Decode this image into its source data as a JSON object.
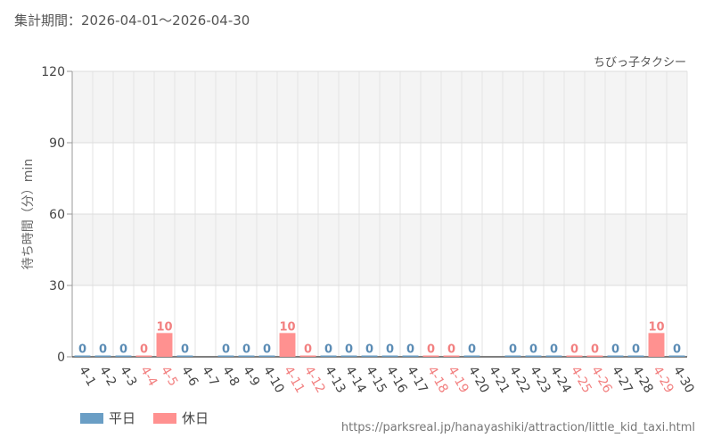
{
  "header": {
    "period_label": "集計期間：2026-04-01～2026-04-30"
  },
  "colors": {
    "weekday": "#6a9ec5",
    "holiday": "#ff9190",
    "weekday_text": "#5b8cb5",
    "holiday_text": "#f28080"
  },
  "legend": {
    "weekday_label": "平日",
    "holiday_label": "休日"
  },
  "source_url": "https://parksreal.jp/hanayashiki/attraction/little_kid_taxi.html",
  "chart_data": {
    "type": "bar",
    "title": "ちびっ子タクシー",
    "ylabel": "待ち時間（分）min",
    "xlabel": "",
    "ylim": [
      0,
      120
    ],
    "yticks": [
      0,
      30,
      60,
      90,
      120
    ],
    "grid": true,
    "legend_position": "bottom-left",
    "categories": [
      "4-1",
      "4-2",
      "4-3",
      "4-4",
      "4-5",
      "4-6",
      "4-7",
      "4-8",
      "4-9",
      "4-10",
      "4-11",
      "4-12",
      "4-13",
      "4-14",
      "4-15",
      "4-16",
      "4-17",
      "4-18",
      "4-19",
      "4-20",
      "4-21",
      "4-22",
      "4-23",
      "4-24",
      "4-25",
      "4-26",
      "4-27",
      "4-28",
      "4-29",
      "4-30"
    ],
    "day_type": [
      "weekday",
      "weekday",
      "weekday",
      "holiday",
      "holiday",
      "weekday",
      "weekday",
      "weekday",
      "weekday",
      "weekday",
      "holiday",
      "holiday",
      "weekday",
      "weekday",
      "weekday",
      "weekday",
      "weekday",
      "holiday",
      "holiday",
      "weekday",
      "weekday",
      "weekday",
      "weekday",
      "weekday",
      "holiday",
      "holiday",
      "weekday",
      "weekday",
      "holiday",
      "weekday"
    ],
    "values": [
      0,
      0,
      0,
      0,
      10,
      0,
      null,
      0,
      0,
      0,
      10,
      0,
      0,
      0,
      0,
      0,
      0,
      0,
      0,
      0,
      null,
      0,
      0,
      0,
      0,
      0,
      0,
      0,
      10,
      0
    ],
    "series": [
      {
        "name": "平日",
        "key": "weekday"
      },
      {
        "name": "休日",
        "key": "holiday"
      }
    ]
  }
}
